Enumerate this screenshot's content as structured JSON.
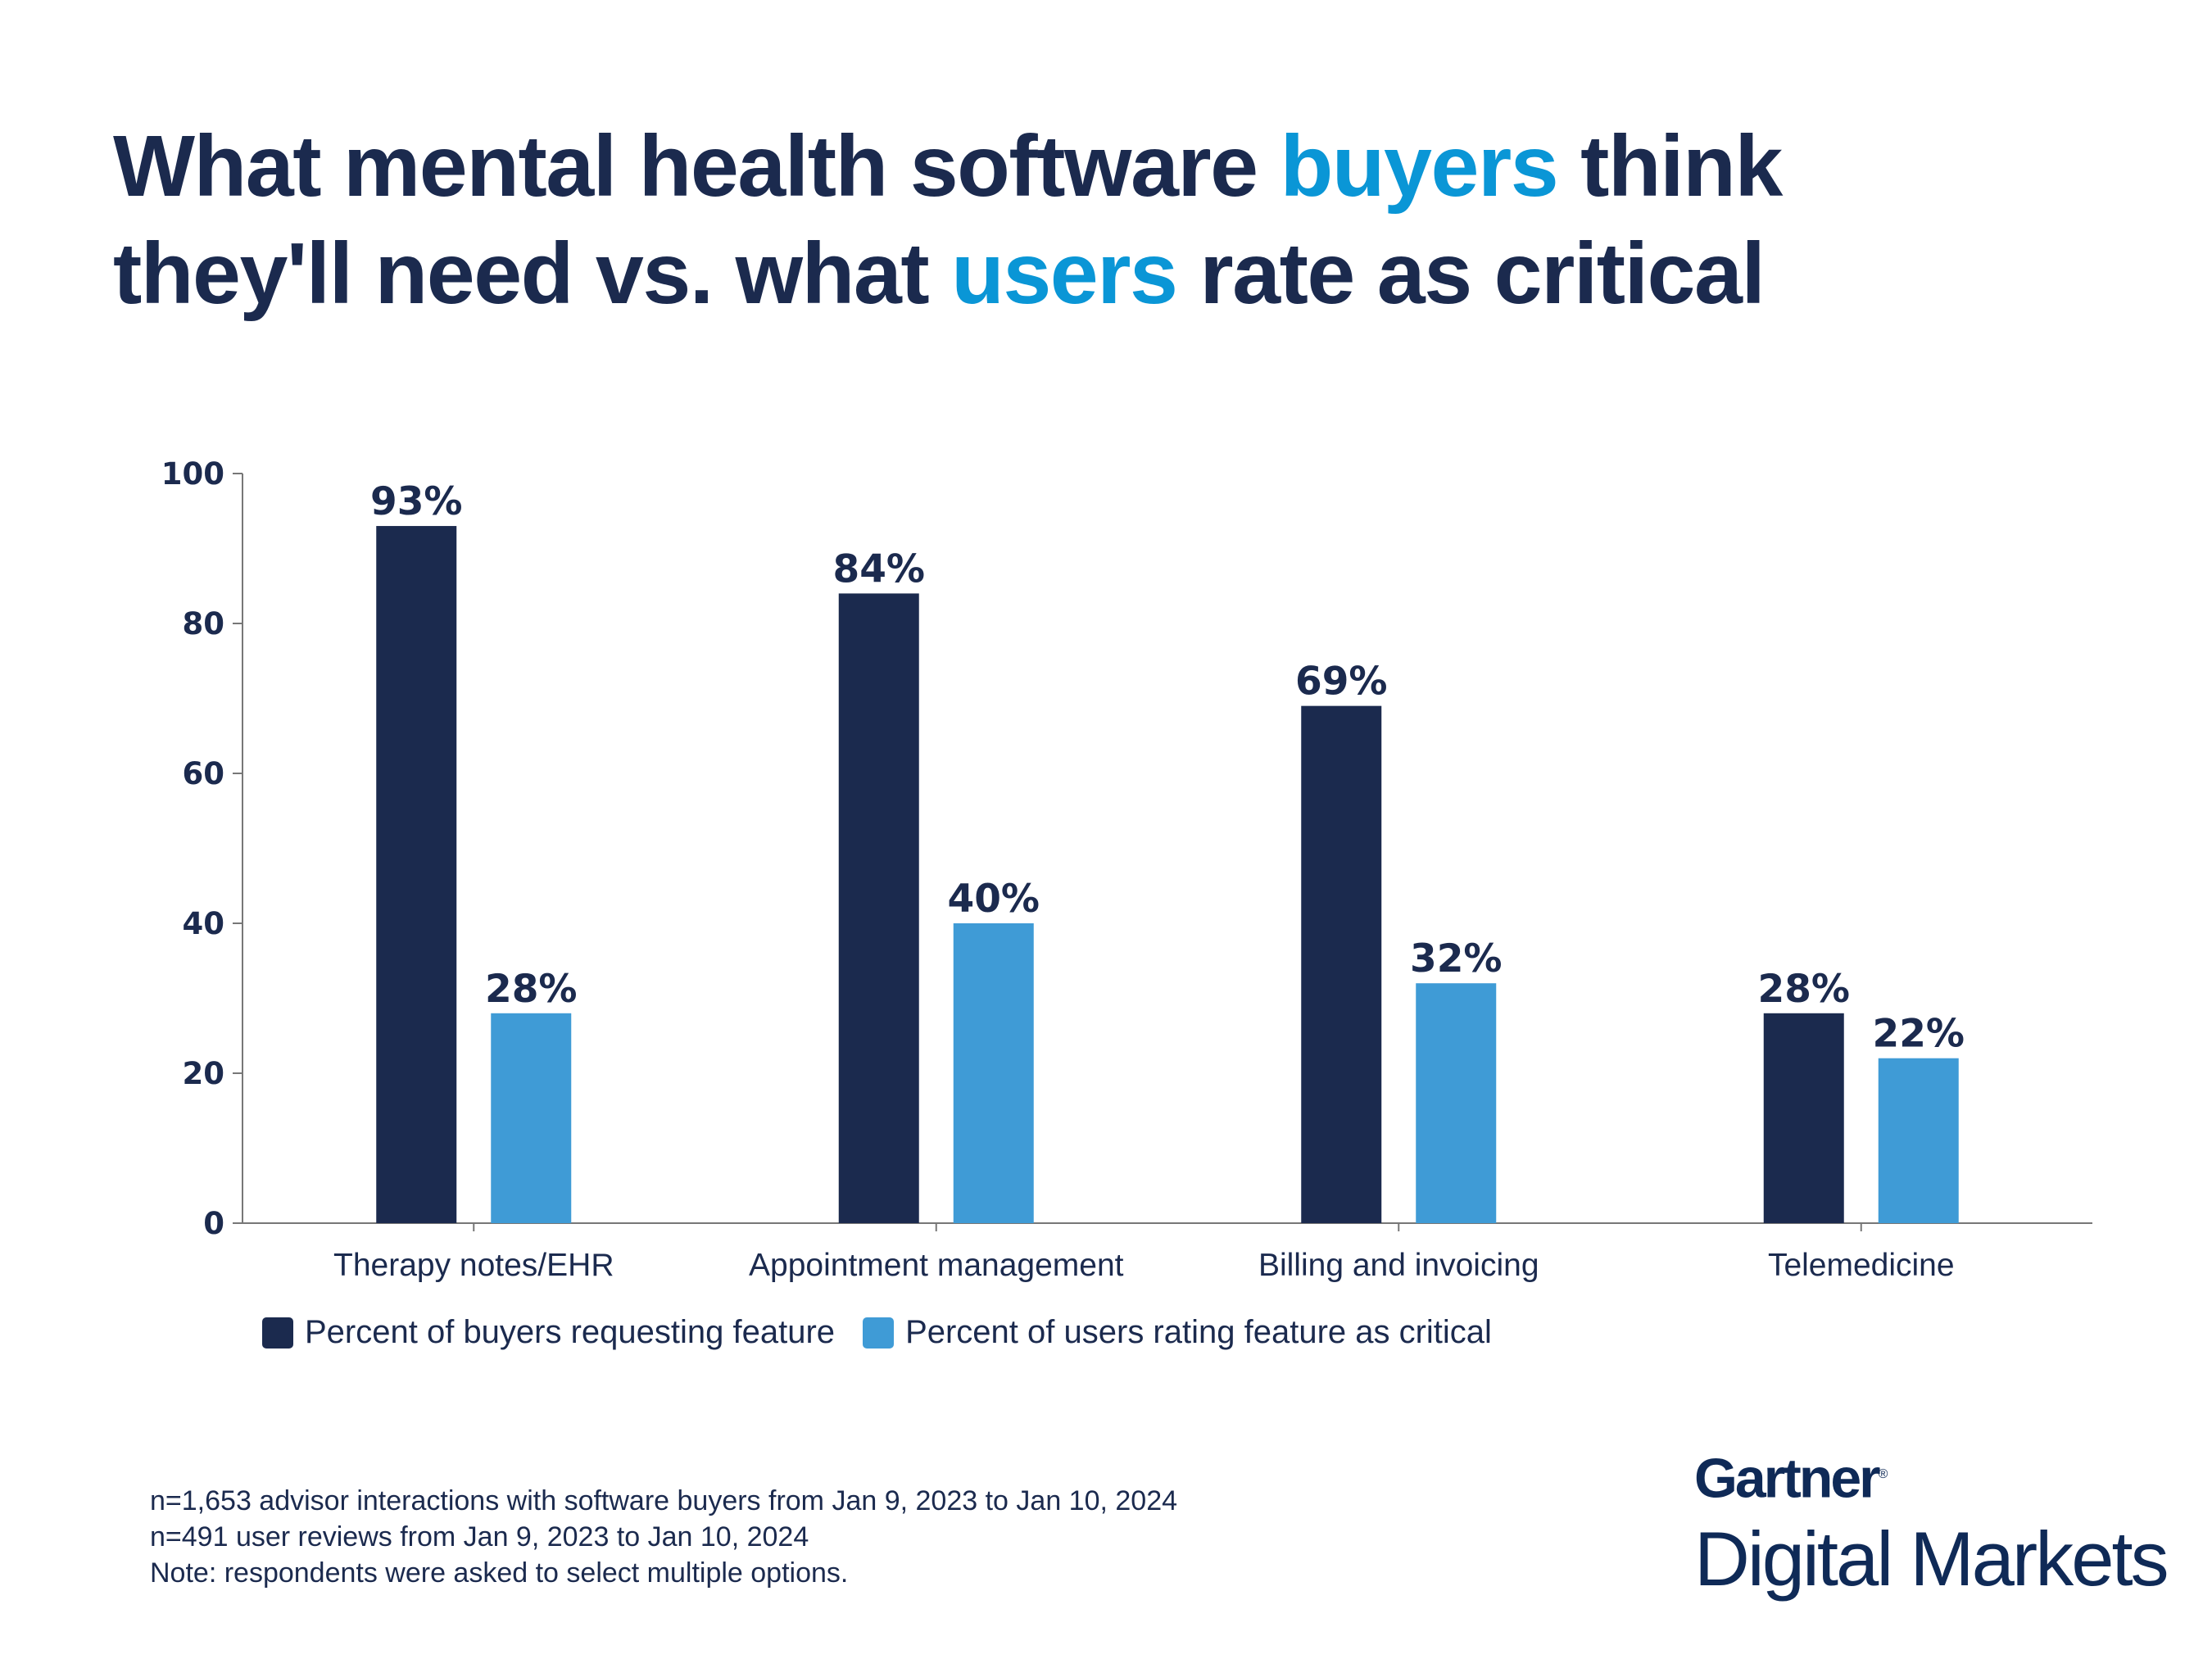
{
  "title": {
    "line1_part1": "What mental health software ",
    "line1_highlight": "buyers",
    "line1_part2": " think",
    "line2_part1": "they'll need vs. what ",
    "line2_highlight": "users",
    "line2_part2": " rate as critical",
    "highlight_color": "#0a96d6"
  },
  "chart_data": {
    "type": "bar",
    "categories": [
      "Therapy notes/EHR",
      "Appointment management",
      "Billing and invoicing",
      "Telemedicine"
    ],
    "series": [
      {
        "name": "Percent of buyers requesting feature",
        "values": [
          93,
          84,
          69,
          28
        ],
        "labels": [
          "93%",
          "84%",
          "69%",
          "28%"
        ],
        "color": "#1b2a4e"
      },
      {
        "name": "Percent of users rating feature as critical",
        "values": [
          28,
          40,
          32,
          22
        ],
        "labels": [
          "28%",
          "40%",
          "32%",
          "22%"
        ],
        "color": "#3f9bd6"
      }
    ],
    "yticks": [
      0,
      20,
      40,
      60,
      80,
      100
    ],
    "ylim": [
      0,
      100
    ],
    "grid": false,
    "legend_placement": "bottom-left"
  },
  "notes": [
    "n=1,653 advisor interactions with software buyers from Jan 9, 2023 to Jan 10, 2024",
    "n=491 user reviews from Jan 9, 2023 to Jan 10, 2024",
    "Note: respondents were asked to select multiple options."
  ],
  "logo": {
    "brand": "Gartner",
    "reg": "®",
    "sub": "Digital Markets"
  }
}
